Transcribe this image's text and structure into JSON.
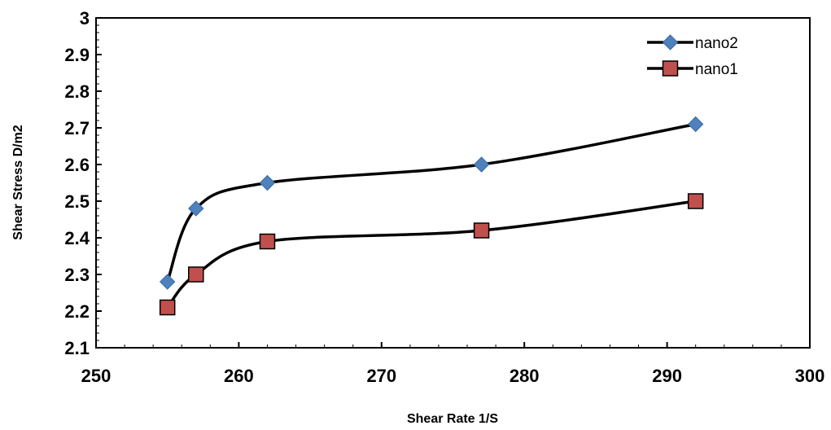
{
  "chart_data": {
    "type": "scatter",
    "title": "",
    "xlabel": "Shear Rate 1/S",
    "ylabel": "Shear Stress D/m2",
    "xlim": [
      250,
      300
    ],
    "ylim": [
      2.1,
      3
    ],
    "x_ticks": [
      "250",
      "260",
      "270",
      "280",
      "290",
      "300"
    ],
    "y_ticks": [
      "2.1",
      "2.2",
      "2.3",
      "2.4",
      "2.5",
      "2.6",
      "2.7",
      "2.8",
      "2.9",
      "3"
    ],
    "grid": false,
    "legend_position": "top-right",
    "line_style": "smooth",
    "series": [
      {
        "name": "nano2",
        "marker": "diamond",
        "marker_color": "#4f81bd",
        "line_color": "#000000",
        "x": [
          255,
          257,
          262,
          277,
          292
        ],
        "y": [
          2.28,
          2.48,
          2.55,
          2.6,
          2.71
        ]
      },
      {
        "name": "nano1",
        "marker": "square",
        "marker_color": "#c0504d",
        "line_color": "#000000",
        "x": [
          255,
          257,
          262,
          277,
          292
        ],
        "y": [
          2.21,
          2.3,
          2.39,
          2.42,
          2.5
        ]
      }
    ]
  }
}
